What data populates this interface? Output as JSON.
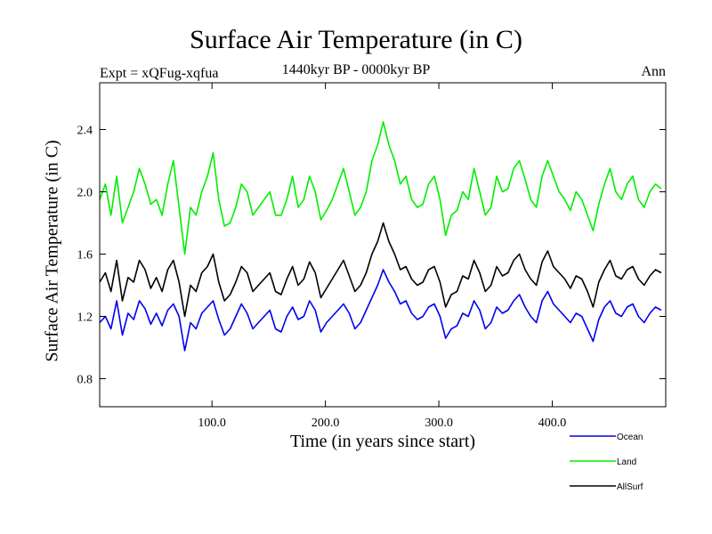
{
  "header": {
    "expt": "Expt = xQFug-xqfua",
    "season": "Ann"
  },
  "chart_data": {
    "type": "line",
    "title": "Surface Air Temperature (in C)",
    "subtitle": "1440kyr BP - 0000kyr BP",
    "xlabel": "Time (in years since start)",
    "ylabel": "Surface Air Temperature (in C)",
    "xlim": [
      1,
      500
    ],
    "ylim": [
      0.62,
      2.7
    ],
    "x_ticks": [
      100,
      200,
      300,
      400
    ],
    "x_tick_labels": [
      "100.0",
      "200.0",
      "300.0",
      "400.0"
    ],
    "y_ticks": [
      0.8,
      1.2,
      1.6,
      2.0,
      2.4
    ],
    "y_tick_labels": [
      "0.8",
      "1.2",
      "1.6",
      "2.0",
      "2.4"
    ],
    "legend_position": "bottom-right, below plot",
    "series": [
      {
        "name": "Ocean",
        "color": "#0000ee",
        "x_start": 1,
        "x_step": 5,
        "values": [
          1.16,
          1.2,
          1.12,
          1.3,
          1.08,
          1.22,
          1.18,
          1.3,
          1.25,
          1.15,
          1.22,
          1.14,
          1.24,
          1.28,
          1.2,
          0.98,
          1.16,
          1.12,
          1.22,
          1.26,
          1.3,
          1.18,
          1.08,
          1.12,
          1.2,
          1.28,
          1.22,
          1.12,
          1.16,
          1.2,
          1.24,
          1.12,
          1.1,
          1.2,
          1.26,
          1.18,
          1.2,
          1.3,
          1.24,
          1.1,
          1.16,
          1.2,
          1.24,
          1.28,
          1.22,
          1.12,
          1.16,
          1.24,
          1.32,
          1.4,
          1.5,
          1.42,
          1.36,
          1.28,
          1.3,
          1.22,
          1.18,
          1.2,
          1.26,
          1.28,
          1.2,
          1.06,
          1.12,
          1.14,
          1.22,
          1.2,
          1.3,
          1.24,
          1.12,
          1.16,
          1.26,
          1.22,
          1.24,
          1.3,
          1.34,
          1.26,
          1.2,
          1.16,
          1.3,
          1.36,
          1.28,
          1.24,
          1.2,
          1.16,
          1.22,
          1.2,
          1.12,
          1.04,
          1.18,
          1.26,
          1.3,
          1.22,
          1.2,
          1.26,
          1.28,
          1.2,
          1.16,
          1.22,
          1.26,
          1.24
        ]
      },
      {
        "name": "Land",
        "color": "#00ee00",
        "x_start": 1,
        "x_step": 5,
        "values": [
          1.95,
          2.05,
          1.85,
          2.1,
          1.8,
          1.9,
          2.0,
          2.15,
          2.05,
          1.92,
          1.95,
          1.85,
          2.05,
          2.2,
          1.9,
          1.6,
          1.9,
          1.85,
          2.0,
          2.1,
          2.25,
          1.95,
          1.78,
          1.8,
          1.9,
          2.05,
          2.0,
          1.85,
          1.9,
          1.95,
          2.0,
          1.85,
          1.85,
          1.95,
          2.1,
          1.9,
          1.95,
          2.1,
          2.0,
          1.82,
          1.88,
          1.95,
          2.05,
          2.15,
          2.0,
          1.85,
          1.9,
          2.0,
          2.2,
          2.3,
          2.45,
          2.3,
          2.2,
          2.05,
          2.1,
          1.95,
          1.9,
          1.92,
          2.05,
          2.1,
          1.95,
          1.72,
          1.85,
          1.88,
          2.0,
          1.95,
          2.15,
          2.0,
          1.85,
          1.9,
          2.1,
          2.0,
          2.02,
          2.15,
          2.2,
          2.08,
          1.95,
          1.9,
          2.1,
          2.2,
          2.1,
          2.0,
          1.95,
          1.88,
          2.0,
          1.95,
          1.85,
          1.75,
          1.92,
          2.05,
          2.15,
          2.0,
          1.95,
          2.05,
          2.1,
          1.95,
          1.9,
          2.0,
          2.05,
          2.02
        ]
      },
      {
        "name": "AllSurf",
        "color": "#000000",
        "x_start": 1,
        "x_step": 5,
        "values": [
          1.42,
          1.48,
          1.36,
          1.56,
          1.3,
          1.45,
          1.42,
          1.56,
          1.5,
          1.38,
          1.45,
          1.36,
          1.5,
          1.56,
          1.42,
          1.2,
          1.4,
          1.36,
          1.48,
          1.52,
          1.6,
          1.42,
          1.3,
          1.34,
          1.42,
          1.52,
          1.48,
          1.36,
          1.4,
          1.44,
          1.48,
          1.36,
          1.34,
          1.44,
          1.52,
          1.4,
          1.44,
          1.55,
          1.48,
          1.32,
          1.38,
          1.44,
          1.5,
          1.56,
          1.46,
          1.36,
          1.4,
          1.48,
          1.6,
          1.68,
          1.8,
          1.68,
          1.6,
          1.5,
          1.52,
          1.44,
          1.4,
          1.42,
          1.5,
          1.52,
          1.42,
          1.26,
          1.34,
          1.36,
          1.46,
          1.44,
          1.56,
          1.48,
          1.36,
          1.4,
          1.52,
          1.46,
          1.48,
          1.56,
          1.6,
          1.5,
          1.44,
          1.4,
          1.55,
          1.62,
          1.52,
          1.48,
          1.44,
          1.38,
          1.46,
          1.44,
          1.36,
          1.26,
          1.42,
          1.5,
          1.56,
          1.46,
          1.44,
          1.5,
          1.52,
          1.44,
          1.4,
          1.46,
          1.5,
          1.48
        ]
      }
    ]
  }
}
